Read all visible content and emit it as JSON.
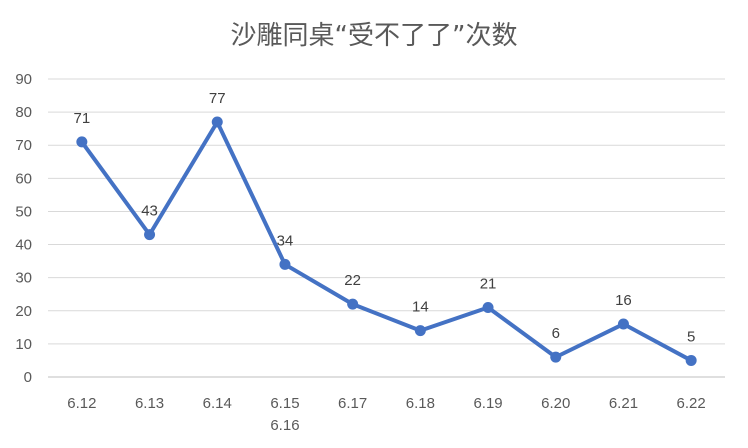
{
  "chart_data": {
    "type": "line",
    "title": "沙雕同桌“受不了了”次数",
    "categories": [
      "6.12",
      "6.13",
      "6.14",
      "6.15\n6.16",
      "6.17",
      "6.18",
      "6.19",
      "6.20",
      "6.21",
      "6.22"
    ],
    "series": [
      {
        "values": [
          71,
          43,
          77,
          34,
          22,
          14,
          21,
          6,
          16,
          5
        ]
      }
    ],
    "ylim": [
      0,
      90
    ],
    "yticks": [
      0,
      10,
      20,
      30,
      40,
      50,
      60,
      70,
      80,
      90
    ],
    "grid": true,
    "data_labels": true,
    "legend": "none",
    "colors": {
      "series": "#4472c4",
      "grid": "#d9d9d9",
      "text": "#595959"
    }
  }
}
